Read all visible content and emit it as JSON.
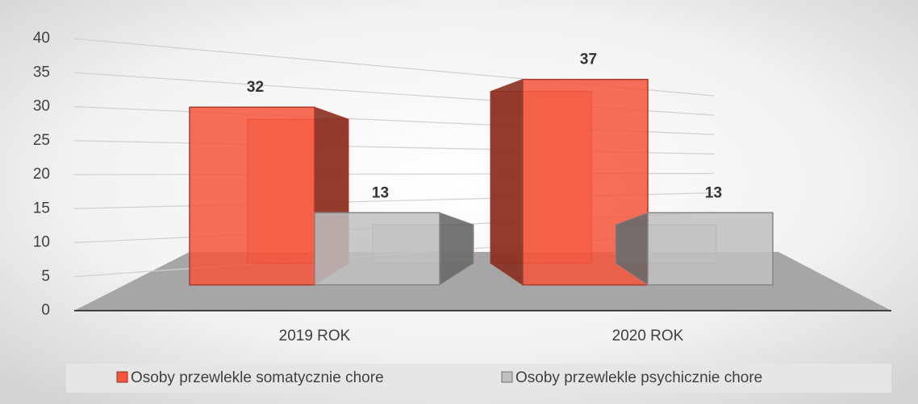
{
  "chart_data": {
    "type": "bar3d",
    "categories": [
      "2019 ROK",
      "2020 ROK"
    ],
    "series": [
      {
        "name": "Osoby przewlekle somatycznie chore",
        "color": "#f5553b",
        "values": [
          32,
          37
        ]
      },
      {
        "name": "Osoby przewlekle psychicznie chore",
        "color": "#bfbfbf",
        "values": [
          13,
          13
        ]
      }
    ],
    "ylim": [
      0,
      40
    ],
    "yticks": [
      0,
      5,
      10,
      15,
      20,
      25,
      30,
      35,
      40
    ],
    "grid": true,
    "legend": "bottom"
  }
}
